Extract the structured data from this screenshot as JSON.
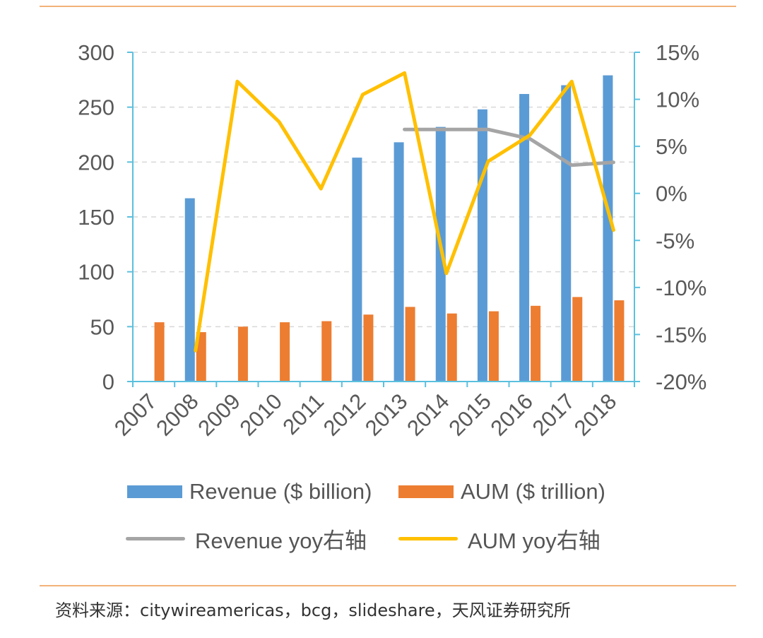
{
  "colors": {
    "revenue": "#5B9BD5",
    "aum": "#ED7D31",
    "revenue_yoy": "#A5A5A5",
    "aum_yoy": "#FFC000",
    "axis": "#5BC0DE",
    "grid": "#D9D9D9",
    "rule": "#F2B27A",
    "tick_text": "#595959"
  },
  "chart_data": {
    "type": "bar",
    "categories": [
      "2007",
      "2008",
      "2009",
      "2010",
      "2011",
      "2012",
      "2013",
      "2014",
      "2015",
      "2016",
      "2017",
      "2018"
    ],
    "y_left": {
      "ticks": [
        "0",
        "50",
        "100",
        "150",
        "200",
        "250",
        "300"
      ],
      "lim": [
        0,
        300
      ]
    },
    "y_right": {
      "ticks": [
        "-20%",
        "-15%",
        "-10%",
        "-5%",
        "0%",
        "5%",
        "10%",
        "15%"
      ],
      "lim": [
        -20,
        15
      ]
    },
    "grid": true,
    "legend_position": "bottom",
    "series": [
      {
        "name": "Revenue ($ billion)",
        "type": "bar",
        "axis": "left",
        "values": [
          null,
          167,
          null,
          null,
          null,
          204,
          218,
          232,
          248,
          262,
          270,
          279
        ]
      },
      {
        "name": "AUM ($ trillion)",
        "type": "bar",
        "axis": "left",
        "values": [
          54,
          45,
          50,
          54,
          55,
          61,
          68,
          62,
          64,
          69,
          77,
          74
        ]
      },
      {
        "name": "Revenue yoy右轴",
        "type": "line",
        "axis": "right",
        "values": [
          null,
          null,
          null,
          null,
          null,
          null,
          6.8,
          6.8,
          6.8,
          5.8,
          3.0,
          3.3
        ]
      },
      {
        "name": "AUM yoy右轴",
        "type": "line",
        "axis": "right",
        "values": [
          null,
          -16.7,
          11.9,
          7.6,
          0.5,
          10.5,
          12.8,
          -8.5,
          3.4,
          6.2,
          11.9,
          -3.9
        ]
      }
    ]
  },
  "source": "资料来源：citywireamericas，bcg，slideshare，天风证券研究所"
}
